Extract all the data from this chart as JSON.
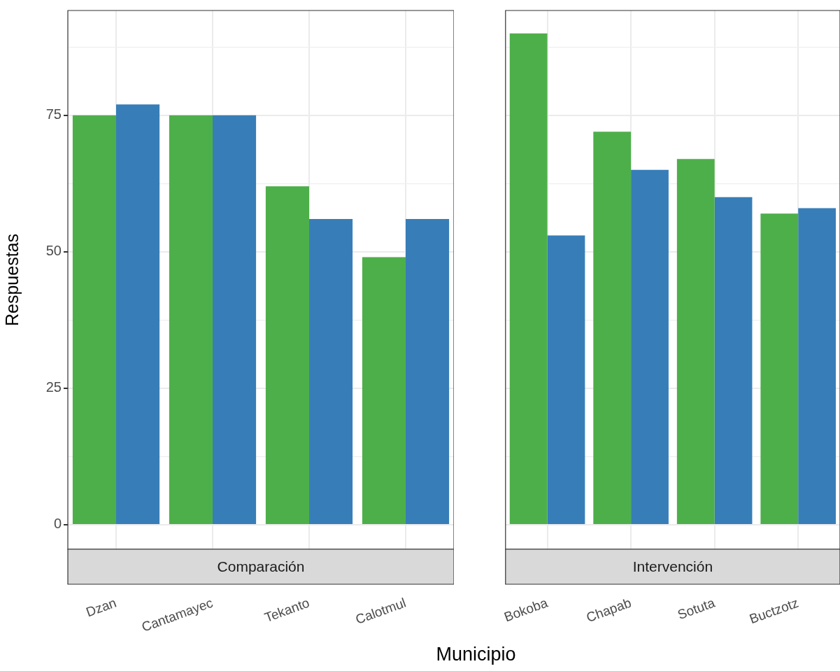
{
  "chart_data": [
    {
      "type": "bar",
      "title": "Comparación",
      "xlabel": "Municipio",
      "ylabel": "Respuestas",
      "categories": [
        "Dzan",
        "Cantamayec",
        "Tekanto",
        "Calotmul"
      ],
      "series": [
        {
          "color": "#4daf4a",
          "values": [
            75,
            75,
            62,
            49
          ]
        },
        {
          "color": "#377eb8",
          "values": [
            77,
            75,
            56,
            56
          ]
        }
      ],
      "ylim": [
        -4.5,
        94.2
      ],
      "yticks": [
        0,
        {
          "value": 12.5,
          "label": null
        },
        25,
        {
          "value": 37.5,
          "label": null
        },
        50,
        {
          "value": 62.5,
          "label": null
        },
        75,
        {
          "value": 87.5,
          "label": null
        }
      ],
      "grid": true,
      "legend": false
    },
    {
      "type": "bar",
      "title": "Intervención",
      "categories": [
        "Bokoba",
        "Chapab",
        "Sotuta",
        "Buctzotz"
      ],
      "series": [
        {
          "color": "#4daf4a",
          "values": [
            90,
            72,
            67,
            57
          ]
        },
        {
          "color": "#377eb8",
          "values": [
            53,
            65,
            60,
            58
          ]
        }
      ],
      "ylim": [
        -4.5,
        94.2
      ],
      "yticks": [
        0,
        {
          "value": 12.5,
          "label": null
        },
        25,
        {
          "value": 37.5,
          "label": null
        },
        50,
        {
          "value": 62.5,
          "label": null
        },
        75,
        {
          "value": 87.5,
          "label": null
        }
      ],
      "grid": true,
      "legend": false,
      "tick_labels": "x"
    }
  ]
}
